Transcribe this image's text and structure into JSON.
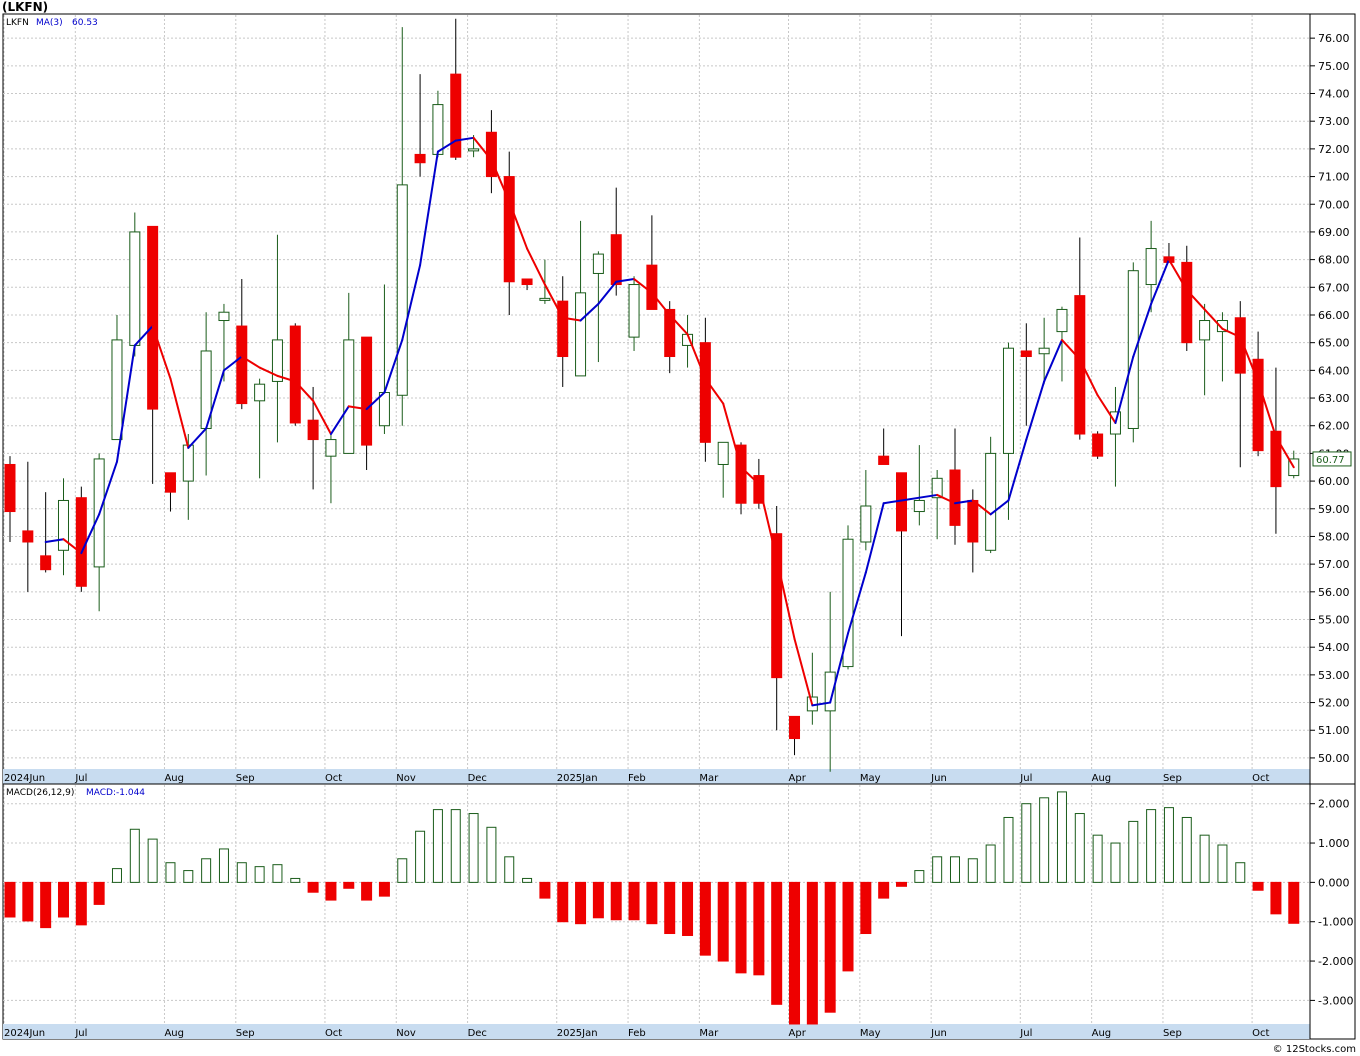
{
  "window": {
    "title": "(LKFN)",
    "footer": "© 12Stocks.com"
  },
  "colors": {
    "up_outline": "#1a5c1a",
    "down_fill": "#ee0000",
    "ma_up": "#0000cc",
    "ma_down": "#ee0000",
    "grid": "#c8c8c8",
    "axis_band": "#c8dcf0"
  },
  "price_panel": {
    "legend_symbol": "LKFN",
    "legend_ma": "MA(3)",
    "legend_ma_value": "60.53",
    "last_price_label": "60.77"
  },
  "macd_panel": {
    "legend": "MACD(26,12,9)",
    "legend_value": "MACD:-1.044"
  },
  "chart_data": [
    {
      "type": "candlestick",
      "title": "",
      "ylim": [
        49.6,
        76.8
      ],
      "y_ticks": [
        "50.00",
        "51.00",
        "52.00",
        "53.00",
        "54.00",
        "55.00",
        "56.00",
        "57.00",
        "58.00",
        "59.00",
        "60.00",
        "61.00",
        "62.00",
        "63.00",
        "64.00",
        "65.00",
        "66.00",
        "67.00",
        "68.00",
        "69.00",
        "70.00",
        "71.00",
        "72.00",
        "73.00",
        "74.00",
        "75.00",
        "76.00"
      ],
      "x_labels": [
        {
          "label": "2024Jun",
          "week": 0
        },
        {
          "label": "Jul",
          "week": 4
        },
        {
          "label": "Aug",
          "week": 9
        },
        {
          "label": "Sep",
          "week": 13
        },
        {
          "label": "Oct",
          "week": 18
        },
        {
          "label": "Nov",
          "week": 22
        },
        {
          "label": "Dec",
          "week": 26
        },
        {
          "label": "2025Jan",
          "week": 31
        },
        {
          "label": "Feb",
          "week": 35
        },
        {
          "label": "Mar",
          "week": 39
        },
        {
          "label": "Apr",
          "week": 44
        },
        {
          "label": "May",
          "week": 48
        },
        {
          "label": "Jun",
          "week": 52
        },
        {
          "label": "Jul",
          "week": 57
        },
        {
          "label": "Aug",
          "week": 61
        },
        {
          "label": "Sep",
          "week": 65
        },
        {
          "label": "Oct",
          "week": 70
        }
      ],
      "candles": [
        {
          "o": 60.6,
          "h": 60.9,
          "l": 57.8,
          "c": 58.9
        },
        {
          "o": 58.2,
          "h": 60.7,
          "l": 56.0,
          "c": 57.8
        },
        {
          "o": 57.3,
          "h": 59.6,
          "l": 56.7,
          "c": 56.8
        },
        {
          "o": 57.5,
          "h": 60.1,
          "l": 56.6,
          "c": 59.3
        },
        {
          "o": 59.4,
          "h": 59.8,
          "l": 56.0,
          "c": 56.2
        },
        {
          "o": 56.9,
          "h": 61.0,
          "l": 55.3,
          "c": 60.8
        },
        {
          "o": 61.5,
          "h": 66.0,
          "l": 61.5,
          "c": 65.1
        },
        {
          "o": 64.9,
          "h": 69.7,
          "l": 64.5,
          "c": 69.0
        },
        {
          "o": 69.2,
          "h": 69.2,
          "l": 59.9,
          "c": 62.6
        },
        {
          "o": 60.3,
          "h": 60.3,
          "l": 58.9,
          "c": 59.6
        },
        {
          "o": 60.0,
          "h": 61.7,
          "l": 58.6,
          "c": 61.3
        },
        {
          "o": 61.9,
          "h": 66.1,
          "l": 60.2,
          "c": 64.7
        },
        {
          "o": 65.8,
          "h": 66.4,
          "l": 63.6,
          "c": 66.1
        },
        {
          "o": 65.6,
          "h": 67.3,
          "l": 62.6,
          "c": 62.8
        },
        {
          "o": 62.9,
          "h": 63.7,
          "l": 60.1,
          "c": 63.5
        },
        {
          "o": 63.6,
          "h": 68.9,
          "l": 61.4,
          "c": 65.1
        },
        {
          "o": 65.6,
          "h": 65.7,
          "l": 62.0,
          "c": 62.1
        },
        {
          "o": 62.2,
          "h": 63.4,
          "l": 59.7,
          "c": 61.5
        },
        {
          "o": 60.9,
          "h": 61.7,
          "l": 59.2,
          "c": 61.5
        },
        {
          "o": 61.0,
          "h": 66.8,
          "l": 61.0,
          "c": 65.1
        },
        {
          "o": 65.2,
          "h": 65.2,
          "l": 60.4,
          "c": 61.3
        },
        {
          "o": 62.0,
          "h": 67.1,
          "l": 61.7,
          "c": 63.2
        },
        {
          "o": 63.1,
          "h": 76.4,
          "l": 62.0,
          "c": 70.7
        },
        {
          "o": 71.8,
          "h": 74.7,
          "l": 71.0,
          "c": 71.5
        },
        {
          "o": 71.8,
          "h": 74.1,
          "l": 71.7,
          "c": 73.6
        },
        {
          "o": 74.7,
          "h": 76.7,
          "l": 71.6,
          "c": 71.7
        },
        {
          "o": 72.0,
          "h": 72.5,
          "l": 71.7,
          "c": 72.0
        },
        {
          "o": 72.6,
          "h": 73.4,
          "l": 70.4,
          "c": 71.0
        },
        {
          "o": 71.0,
          "h": 71.9,
          "l": 66.0,
          "c": 67.2
        },
        {
          "o": 67.3,
          "h": 67.3,
          "l": 66.9,
          "c": 67.1
        },
        {
          "o": 66.6,
          "h": 68.0,
          "l": 66.4,
          "c": 66.6
        },
        {
          "o": 66.5,
          "h": 67.4,
          "l": 63.4,
          "c": 64.5
        },
        {
          "o": 63.8,
          "h": 69.4,
          "l": 63.8,
          "c": 66.8
        },
        {
          "o": 67.5,
          "h": 68.3,
          "l": 64.3,
          "c": 68.2
        },
        {
          "o": 68.9,
          "h": 70.6,
          "l": 66.7,
          "c": 67.1
        },
        {
          "o": 65.2,
          "h": 67.4,
          "l": 64.7,
          "c": 67.1
        },
        {
          "o": 67.8,
          "h": 69.6,
          "l": 66.2,
          "c": 66.2
        },
        {
          "o": 66.2,
          "h": 66.5,
          "l": 63.9,
          "c": 64.5
        },
        {
          "o": 64.9,
          "h": 66.0,
          "l": 64.1,
          "c": 65.3
        },
        {
          "o": 65.0,
          "h": 65.9,
          "l": 60.7,
          "c": 61.4
        },
        {
          "o": 60.6,
          "h": 61.3,
          "l": 59.4,
          "c": 61.4
        },
        {
          "o": 61.3,
          "h": 61.4,
          "l": 58.8,
          "c": 59.2
        },
        {
          "o": 60.2,
          "h": 60.8,
          "l": 59.0,
          "c": 59.2
        },
        {
          "o": 58.1,
          "h": 59.1,
          "l": 51.0,
          "c": 52.9
        },
        {
          "o": 51.5,
          "h": 51.5,
          "l": 50.1,
          "c": 50.7
        },
        {
          "o": 51.7,
          "h": 53.8,
          "l": 51.2,
          "c": 52.2
        },
        {
          "o": 51.7,
          "h": 56.0,
          "l": 49.5,
          "c": 53.1
        },
        {
          "o": 53.3,
          "h": 58.4,
          "l": 53.2,
          "c": 57.9
        },
        {
          "o": 57.8,
          "h": 60.4,
          "l": 57.5,
          "c": 59.1
        },
        {
          "o": 60.9,
          "h": 61.9,
          "l": 60.6,
          "c": 60.6
        },
        {
          "o": 60.3,
          "h": 60.3,
          "l": 54.4,
          "c": 58.2
        },
        {
          "o": 58.9,
          "h": 61.3,
          "l": 58.4,
          "c": 59.3
        },
        {
          "o": 59.4,
          "h": 60.4,
          "l": 57.9,
          "c": 60.1
        },
        {
          "o": 60.4,
          "h": 61.9,
          "l": 57.7,
          "c": 58.4
        },
        {
          "o": 59.3,
          "h": 59.7,
          "l": 56.7,
          "c": 57.8
        },
        {
          "o": 57.5,
          "h": 61.6,
          "l": 57.4,
          "c": 61.0
        },
        {
          "o": 61.0,
          "h": 65.0,
          "l": 58.6,
          "c": 64.8
        },
        {
          "o": 64.7,
          "h": 65.7,
          "l": 62.0,
          "c": 64.5
        },
        {
          "o": 64.6,
          "h": 65.9,
          "l": 63.5,
          "c": 64.8
        },
        {
          "o": 65.4,
          "h": 66.3,
          "l": 63.6,
          "c": 66.2
        },
        {
          "o": 66.7,
          "h": 68.8,
          "l": 61.5,
          "c": 61.7
        },
        {
          "o": 61.7,
          "h": 61.8,
          "l": 60.8,
          "c": 60.9
        },
        {
          "o": 61.7,
          "h": 63.4,
          "l": 59.8,
          "c": 62.5
        },
        {
          "o": 61.9,
          "h": 67.9,
          "l": 61.4,
          "c": 67.6
        },
        {
          "o": 67.1,
          "h": 69.4,
          "l": 66.1,
          "c": 68.4
        },
        {
          "o": 68.1,
          "h": 68.6,
          "l": 67.9,
          "c": 67.9
        },
        {
          "o": 67.9,
          "h": 68.5,
          "l": 64.7,
          "c": 65.0
        },
        {
          "o": 65.1,
          "h": 66.4,
          "l": 63.1,
          "c": 65.8
        },
        {
          "o": 65.4,
          "h": 66.1,
          "l": 63.6,
          "c": 65.8
        },
        {
          "o": 65.9,
          "h": 66.5,
          "l": 60.5,
          "c": 63.9
        },
        {
          "o": 64.4,
          "h": 65.4,
          "l": 60.9,
          "c": 61.1
        },
        {
          "o": 61.8,
          "h": 64.1,
          "l": 58.1,
          "c": 59.8
        },
        {
          "o": 60.2,
          "h": 61.1,
          "l": 60.1,
          "c": 60.8
        }
      ],
      "ma3": [
        null,
        null,
        57.8,
        57.9,
        57.4,
        58.8,
        60.7,
        64.9,
        65.6,
        63.7,
        61.2,
        61.9,
        64.0,
        64.5,
        64.1,
        63.8,
        63.6,
        62.9,
        61.7,
        62.7,
        62.6,
        63.2,
        65.1,
        67.8,
        71.9,
        72.3,
        72.4,
        71.6,
        70.1,
        68.4,
        67.1,
        65.9,
        65.8,
        66.4,
        67.2,
        67.3,
        66.8,
        66.0,
        65.3,
        63.7,
        62.8,
        60.5,
        59.9,
        57.2,
        54.3,
        51.9,
        52.0,
        54.5,
        56.7,
        59.2,
        59.3,
        59.4,
        59.5,
        59.2,
        59.3,
        58.8,
        59.3,
        61.5,
        63.6,
        65.1,
        64.4,
        63.1,
        62.1,
        64.5,
        66.4,
        68.0,
        66.9,
        66.2,
        65.5,
        65.2,
        63.6,
        61.6,
        60.5
      ]
    },
    {
      "type": "bar",
      "title": "",
      "ylim": [
        -3.6,
        2.45
      ],
      "y_ticks": [
        "2.000",
        "1.000",
        "0.000",
        "-1.000",
        "-2.000",
        "-3.000"
      ],
      "values": [
        -0.88,
        -0.98,
        -1.15,
        -0.88,
        -1.08,
        -0.56,
        0.35,
        1.35,
        1.1,
        0.5,
        0.3,
        0.6,
        0.85,
        0.5,
        0.4,
        0.45,
        0.1,
        -0.25,
        -0.45,
        -0.15,
        -0.45,
        -0.35,
        0.6,
        1.3,
        1.85,
        1.85,
        1.75,
        1.4,
        0.65,
        0.1,
        -0.4,
        -1.0,
        -1.05,
        -0.9,
        -0.95,
        -0.95,
        -1.05,
        -1.3,
        -1.35,
        -1.85,
        -2.0,
        -2.3,
        -2.35,
        -3.1,
        -3.6,
        -3.6,
        -3.3,
        -2.25,
        -1.3,
        -0.4,
        -0.1,
        0.3,
        0.65,
        0.65,
        0.6,
        0.95,
        1.65,
        2.0,
        2.15,
        2.3,
        1.75,
        1.2,
        1.0,
        1.55,
        1.85,
        1.9,
        1.65,
        1.2,
        0.95,
        0.5,
        -0.2,
        -0.8,
        -1.04
      ]
    }
  ]
}
